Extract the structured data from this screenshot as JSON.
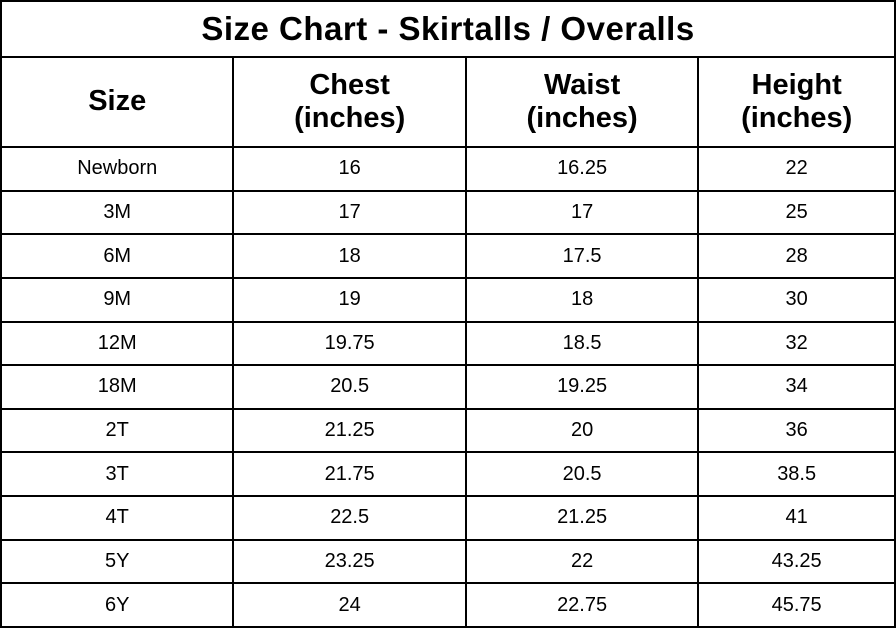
{
  "title": "Size Chart - Skirtalls / Overalls",
  "chart_data": {
    "type": "table",
    "title": "Size Chart - Skirtalls / Overalls",
    "columns": [
      "Size",
      "Chest\n(inches)",
      "Waist\n(inches)",
      "Height\n(inches)"
    ],
    "rows": [
      [
        "Newborn",
        "16",
        "16.25",
        "22"
      ],
      [
        "3M",
        "17",
        "17",
        "25"
      ],
      [
        "6M",
        "18",
        "17.5",
        "28"
      ],
      [
        "9M",
        "19",
        "18",
        "30"
      ],
      [
        "12M",
        "19.75",
        "18.5",
        "32"
      ],
      [
        "18M",
        "20.5",
        "19.25",
        "34"
      ],
      [
        "2T",
        "21.25",
        "20",
        "36"
      ],
      [
        "3T",
        "21.75",
        "20.5",
        "38.5"
      ],
      [
        "4T",
        "22.5",
        "21.25",
        "41"
      ],
      [
        "5Y",
        "23.25",
        "22",
        "43.25"
      ],
      [
        "6Y",
        "24",
        "22.75",
        "45.75"
      ]
    ],
    "layout": {
      "grid": true,
      "border_color": "#000000",
      "background_color": "#ffffff",
      "text_color": "#000000"
    }
  }
}
